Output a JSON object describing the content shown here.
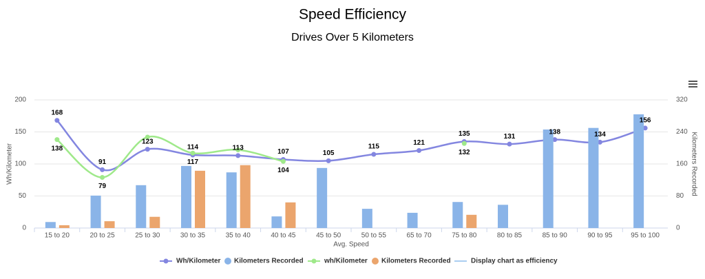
{
  "chart_data": {
    "type": "combo",
    "title": "Speed Efficiency",
    "subtitle": "Drives Over 5 Kilometers",
    "x_label": "Avg. Speed",
    "y_label": "Wh/Kilometer",
    "y2_label": "Kilometers Recorded",
    "categories": [
      "15 to 20",
      "20 to 25",
      "25 to 30",
      "30 to 35",
      "35 to 40",
      "40 to 45",
      "45 to 50",
      "50 to 55",
      "65 to 70",
      "75 to 80",
      "80 to 85",
      "85 to 90",
      "90 to 95",
      "95 to 100"
    ],
    "ylim": [
      0,
      200
    ],
    "yticks": [
      0,
      50,
      100,
      150,
      200
    ],
    "y2lim": [
      0,
      320
    ],
    "y2ticks": [
      0,
      80,
      160,
      240,
      320
    ],
    "grid": true,
    "legend": "bottom",
    "series": [
      {
        "name": "Wh/Kilometer",
        "type": "line",
        "color": "#8386e0",
        "values": [
          168,
          91,
          123,
          114,
          113,
          107,
          105,
          115,
          121,
          135,
          131,
          138,
          134,
          156
        ]
      },
      {
        "name": "Kilometers Recorded",
        "type": "bar",
        "axis": "y2",
        "color": "#8ab4e8",
        "values": [
          15,
          81,
          107,
          155,
          139,
          29,
          150,
          48,
          38,
          65,
          58,
          246,
          250,
          284
        ]
      },
      {
        "name": "wh/Kilometer",
        "type": "line",
        "color": "#9fe98a",
        "values": [
          138,
          79,
          142,
          117,
          122,
          104,
          null,
          null,
          null,
          132,
          null,
          null,
          null,
          null
        ],
        "value_labels": [
          "138",
          "79",
          null,
          "117",
          null,
          "104",
          null,
          null,
          null,
          "132",
          null,
          null,
          null,
          null
        ]
      },
      {
        "name": "Kilometers Recorded",
        "type": "bar",
        "axis": "y2",
        "color": "#eba56d",
        "values": [
          7,
          17,
          28,
          143,
          157,
          64,
          null,
          null,
          null,
          33,
          null,
          null,
          null,
          null
        ]
      },
      {
        "name": "Display chart as efficiency",
        "type": "line",
        "color": "#a9cdf0",
        "values": [
          null,
          null,
          null,
          null,
          null,
          null,
          null,
          null,
          null,
          null,
          null,
          null,
          null,
          null
        ]
      }
    ]
  }
}
